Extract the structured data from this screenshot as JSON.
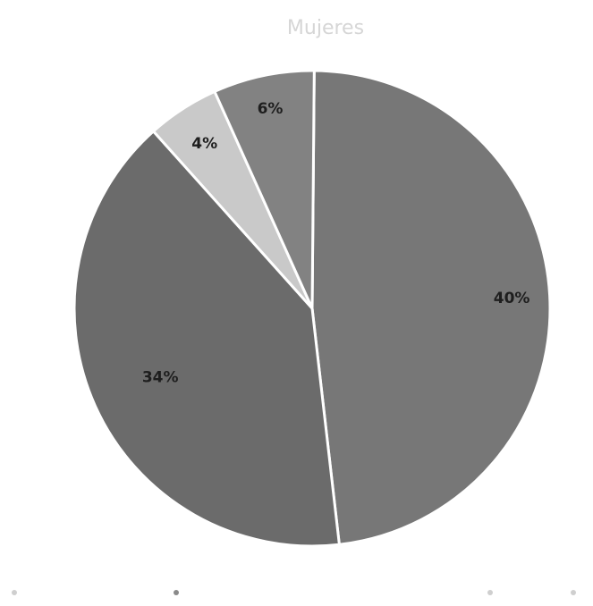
{
  "chart_data": {
    "type": "pie",
    "title": "Mujeres",
    "legend_position": "bottom",
    "slices": [
      {
        "label": "40%",
        "value": 49,
        "color": "#777777"
      },
      {
        "label": "34%",
        "value": 41,
        "color": "#6b6b6b"
      },
      {
        "label": "4%",
        "value": 5,
        "color": "#c9c9c9"
      },
      {
        "label": "6%",
        "value": 7,
        "color": "#828282"
      }
    ],
    "legend": [
      {
        "name": "",
        "color": "#cfcfcf"
      },
      {
        "name": "",
        "color": "#8a8a8a"
      },
      {
        "name": "",
        "color": "#cfcfcf"
      },
      {
        "name": "",
        "color": "#cfcfcf"
      }
    ]
  }
}
